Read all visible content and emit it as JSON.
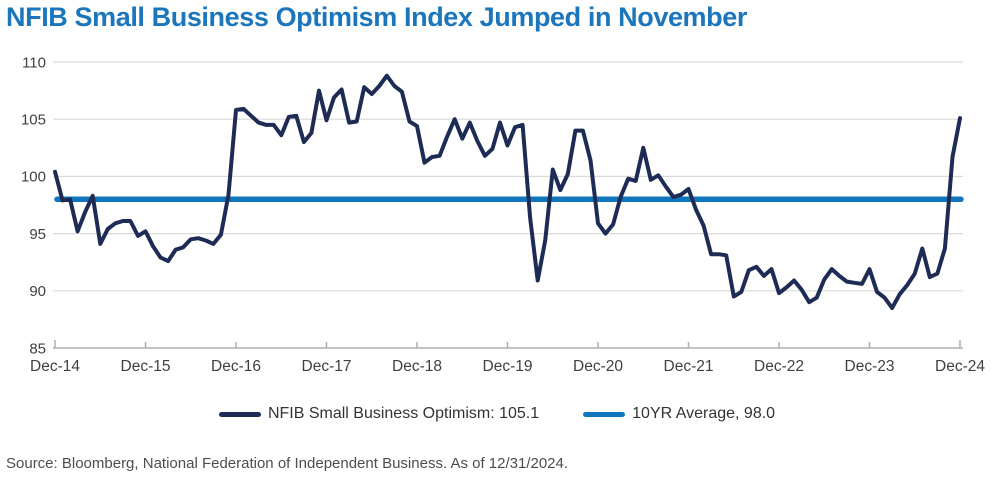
{
  "title": "NFIB Small Business Optimism Index Jumped in November",
  "source_note": "Source: Bloomberg, National Federation of Independent Business. As of 12/31/2024.",
  "colors": {
    "title": "#1B76BC",
    "series_navy": "#1E2C55",
    "series_blue": "#1176BD",
    "gridline": "#D9D9D9",
    "axis_line": "#AFAFAF",
    "tick_label": "#404040",
    "legend_text": "#333333",
    "source_text": "#4D4D4D"
  },
  "legend": {
    "items": [
      {
        "label": "NFIB Small Business Optimism: 105.1",
        "color": "#1E2C55"
      },
      {
        "label": "10YR Average, 98.0",
        "color": "#1176BD"
      }
    ]
  },
  "chart_data": {
    "type": "line",
    "title": "NFIB Small Business Optimism Index Jumped in November",
    "xlabel": "",
    "ylabel": "",
    "ylim": [
      85,
      110
    ],
    "y_ticks": [
      85,
      90,
      95,
      100,
      105,
      110
    ],
    "x_tick_labels": [
      "Dec-14",
      "Dec-15",
      "Dec-16",
      "Dec-17",
      "Dec-18",
      "Dec-19",
      "Dec-20",
      "Dec-21",
      "Dec-22",
      "Dec-23",
      "Dec-24"
    ],
    "grid": "horizontal",
    "legend_position": "bottom",
    "x_start": "Dec-2014",
    "x_frequency": "monthly",
    "series": [
      {
        "name": "NFIB Small Business Optimism: 105.1",
        "color": "#1E2C55",
        "last_value": 105.1,
        "values": [
          100.4,
          97.9,
          98.0,
          95.2,
          96.9,
          98.3,
          94.1,
          95.4,
          95.9,
          96.1,
          96.1,
          94.8,
          95.2,
          93.9,
          92.9,
          92.6,
          93.6,
          93.8,
          94.5,
          94.6,
          94.4,
          94.1,
          94.9,
          98.4,
          105.8,
          105.9,
          105.3,
          104.7,
          104.5,
          104.5,
          103.6,
          105.2,
          105.3,
          103.0,
          103.8,
          107.5,
          104.9,
          106.9,
          107.6,
          104.7,
          104.8,
          107.8,
          107.2,
          107.9,
          108.8,
          107.9,
          107.4,
          104.8,
          104.4,
          101.2,
          101.7,
          101.8,
          103.5,
          105.0,
          103.3,
          104.7,
          103.1,
          101.8,
          102.4,
          104.7,
          102.7,
          104.3,
          104.5,
          96.4,
          90.9,
          94.4,
          100.6,
          98.8,
          100.2,
          104.0,
          104.0,
          101.4,
          95.9,
          95.0,
          95.8,
          98.2,
          99.8,
          99.6,
          102.5,
          99.7,
          100.1,
          99.1,
          98.2,
          98.4,
          98.9,
          97.1,
          95.7,
          93.2,
          93.2,
          93.1,
          89.5,
          89.9,
          91.8,
          92.1,
          91.3,
          91.9,
          89.8,
          90.3,
          90.9,
          90.1,
          89.0,
          89.4,
          91.0,
          91.9,
          91.3,
          90.8,
          90.7,
          90.6,
          91.9,
          89.9,
          89.4,
          88.5,
          89.7,
          90.5,
          91.5,
          93.7,
          91.2,
          91.5,
          93.7,
          101.7,
          105.1
        ]
      },
      {
        "name": "10YR Average, 98.0",
        "color": "#1176BD",
        "type": "constant",
        "value": 98.0
      }
    ]
  }
}
